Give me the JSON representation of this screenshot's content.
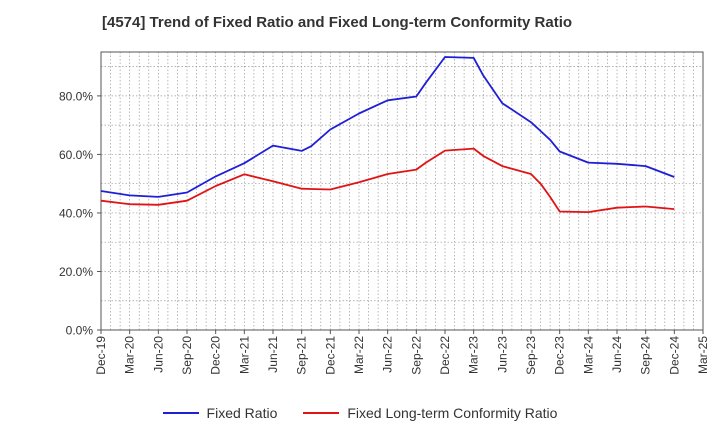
{
  "chart_data": {
    "type": "line",
    "title": "[4574]  Trend of Fixed Ratio and Fixed Long-term Conformity Ratio",
    "xlabel": "",
    "ylabel": "",
    "ylim": [
      0,
      95
    ],
    "y_ticks": [
      0,
      20,
      40,
      60,
      80
    ],
    "y_tick_labels": [
      "0.0%",
      "20.0%",
      "40.0%",
      "60.0%",
      "80.0%"
    ],
    "x_tick_labels": [
      "Dec-19",
      "Mar-20",
      "Jun-20",
      "Sep-20",
      "Dec-20",
      "Mar-21",
      "Jun-21",
      "Sep-21",
      "Dec-21",
      "Mar-22",
      "Jun-22",
      "Sep-22",
      "Dec-22",
      "Mar-23",
      "Jun-23",
      "Sep-23",
      "Dec-23",
      "Mar-24",
      "Jun-24",
      "Sep-24",
      "Dec-24",
      "Mar-25"
    ],
    "grid": true,
    "legend_position": "bottom",
    "x": [
      "Dec-19",
      "Mar-20",
      "Jun-20",
      "Sep-20",
      "Dec-20",
      "Mar-21",
      "Jun-21",
      "Sep-21",
      "Oct-21",
      "Dec-21",
      "Mar-22",
      "Jun-22",
      "Sep-22",
      "Oct-22",
      "Dec-22",
      "Mar-23",
      "Apr-23",
      "Jun-23",
      "Sep-23",
      "Oct-23",
      "Nov-23",
      "Dec-23",
      "Mar-24",
      "Jun-24",
      "Sep-24",
      "Dec-24"
    ],
    "series": [
      {
        "name": "Fixed Ratio",
        "color": "#1f1fd6",
        "values": [
          47.5,
          46.0,
          45.5,
          47.0,
          52.5,
          57.0,
          63.0,
          61.2,
          62.8,
          68.5,
          74.0,
          78.5,
          79.8,
          84.5,
          93.3,
          93.0,
          87.0,
          77.5,
          71.0,
          68.0,
          65.0,
          61.0,
          57.2,
          56.8,
          56.0,
          52.3
        ]
      },
      {
        "name": "Fixed Long-term Conformity Ratio",
        "color": "#e01414",
        "values": [
          44.2,
          43.0,
          42.8,
          44.2,
          49.2,
          53.2,
          50.8,
          48.3,
          48.2,
          48.0,
          50.5,
          53.3,
          54.8,
          57.2,
          61.3,
          62.0,
          59.5,
          56.0,
          53.3,
          50.0,
          45.5,
          40.5,
          40.3,
          41.8,
          42.2,
          41.3
        ]
      }
    ]
  }
}
